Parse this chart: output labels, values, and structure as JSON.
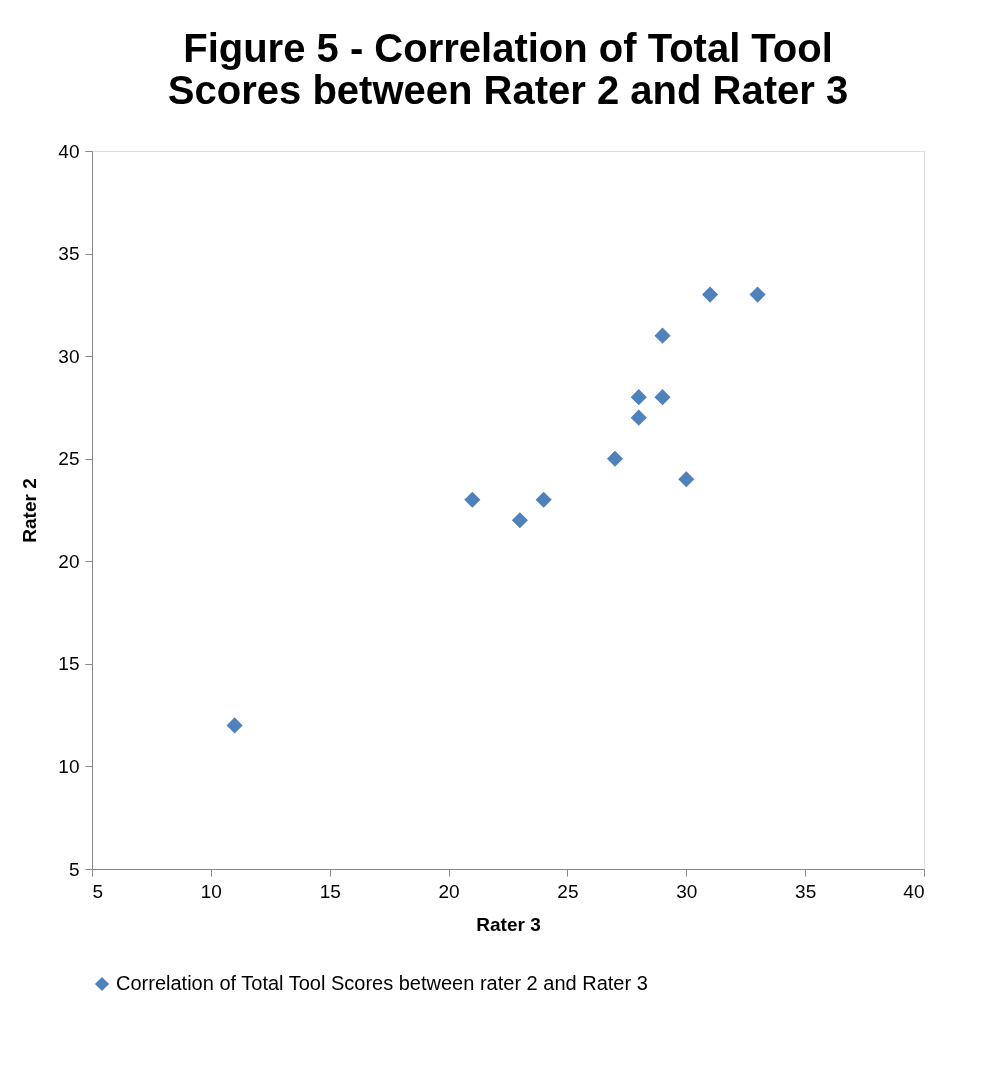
{
  "chart_data": {
    "type": "scatter",
    "title": "Figure 5 - Correlation of Total Tool Scores between Rater 2 and Rater 3",
    "xlabel": "Rater 3",
    "ylabel": "Rater 2",
    "series": [
      {
        "name": "Correlation of Total Tool Scores between rater 2 and Rater 3",
        "color": "#4f81bd",
        "x": [
          11,
          21,
          23,
          24,
          27,
          28,
          28,
          29,
          29,
          30,
          31,
          33
        ],
        "values": [
          12,
          23,
          22,
          23,
          25,
          28,
          27,
          31,
          28,
          24,
          33,
          33
        ]
      }
    ],
    "xlim": [
      5,
      40
    ],
    "xticks": [
      5,
      10,
      15,
      20,
      25,
      30,
      35,
      40
    ],
    "ylim": [
      5,
      40
    ],
    "yticks": [
      5,
      10,
      15,
      20,
      25,
      30,
      35,
      40
    ],
    "marker": "diamond",
    "grid": false,
    "legend": "bottom"
  }
}
